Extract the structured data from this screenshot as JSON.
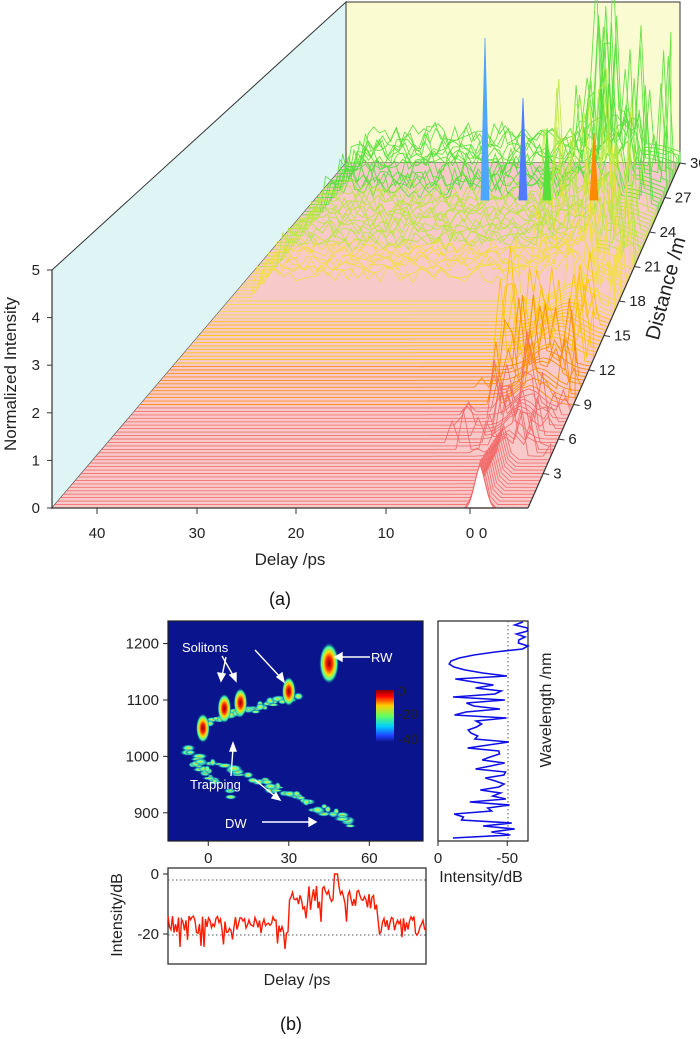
{
  "figure": {
    "panel_a_label": "(a)",
    "panel_b_label": "(b)"
  },
  "colors": {
    "back_wall": "#fbfbd2",
    "side_wall": "#dff4f4",
    "trace": "#f26868",
    "map_background": "#0a148c",
    "spectrum_line": "#1010e6",
    "temporal_line": "#ff1a00"
  },
  "chart_data": [
    {
      "id": "a",
      "type": "waterfall",
      "xlabel": "Delay /ps",
      "ylabel": "Normalized Intensity",
      "zlabel": "Distance /m",
      "x_ticks": [
        "40",
        "30",
        "20",
        "10",
        "0",
        "0"
      ],
      "y_ticks": [
        "0",
        "1",
        "2",
        "3",
        "4",
        "5"
      ],
      "z_ticks": [
        "3",
        "6",
        "9",
        "12",
        "15",
        "18",
        "21",
        "24",
        "27",
        "30"
      ],
      "xlim": [
        45,
        -5
      ],
      "ylim": [
        0,
        5
      ],
      "zlim": [
        0,
        30
      ],
      "input_pulse_peak": 1.0,
      "max_peak": 4.3
    },
    {
      "id": "b-map",
      "type": "heatmap",
      "xlabel": "",
      "ylabel": "",
      "x_ticks": [
        "0",
        "30",
        "60"
      ],
      "y_ticks": [
        "1200",
        "1100",
        "1000",
        "900"
      ],
      "xlim": [
        -15,
        80
      ],
      "ylim": [
        850,
        1240
      ],
      "colorbar": {
        "ticks": [
          "0",
          "-20",
          "-40"
        ],
        "range": [
          0,
          -40
        ]
      },
      "features": [
        {
          "name": "RW",
          "delay": 45,
          "wavelength": 1165
        },
        {
          "name": "soliton",
          "delay": 30,
          "wavelength": 1115
        },
        {
          "name": "soliton",
          "delay": 12,
          "wavelength": 1095
        },
        {
          "name": "soliton",
          "delay": 6,
          "wavelength": 1085
        },
        {
          "name": "soliton",
          "delay": -2,
          "wavelength": 1050
        }
      ],
      "annotations": [
        {
          "text": "Solitons"
        },
        {
          "text": "RW"
        },
        {
          "text": "Trapping"
        },
        {
          "text": "DW"
        }
      ]
    },
    {
      "id": "b-spectrum",
      "type": "line",
      "xlabel": "Intensity/dB",
      "ylabel": "Wavelength /nm",
      "x_ticks": [
        "0",
        "-50"
      ],
      "xlim": [
        0,
        -65
      ]
    },
    {
      "id": "b-temporal",
      "type": "line",
      "xlabel": "Delay /ps",
      "ylabel": "Intensity/dB",
      "y_ticks": [
        "0",
        "-20"
      ],
      "ylim": [
        -30,
        2
      ]
    }
  ]
}
